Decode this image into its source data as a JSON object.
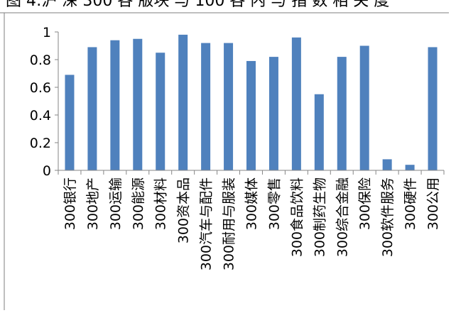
{
  "chart_data": {
    "type": "bar",
    "title": "图 4:沪 深 300 各 版块 与 100 各 内 与 指 数 相 关 度",
    "xlabel": "",
    "ylabel": "",
    "ylim": [
      0,
      1
    ],
    "yticks": [
      "0",
      "0.2",
      "0.4",
      "0.6",
      "0.8",
      "1"
    ],
    "grid": false,
    "legend": "none",
    "bar_color": "#4f81bd",
    "categories": [
      "300银行",
      "300地产",
      "300运输",
      "300能源",
      "300材料",
      "300资本品",
      "300汽车与配件",
      "300耐用与服装",
      "300媒体",
      "300零售",
      "300食品饮料",
      "300制药生物",
      "300综合金融",
      "300保险",
      "300软件服务",
      "300硬件",
      "300公用"
    ],
    "values": [
      0.69,
      0.89,
      0.94,
      0.95,
      0.85,
      0.98,
      0.92,
      0.92,
      0.79,
      0.82,
      0.96,
      0.55,
      0.82,
      0.9,
      0.08,
      0.04,
      0.89
    ]
  }
}
